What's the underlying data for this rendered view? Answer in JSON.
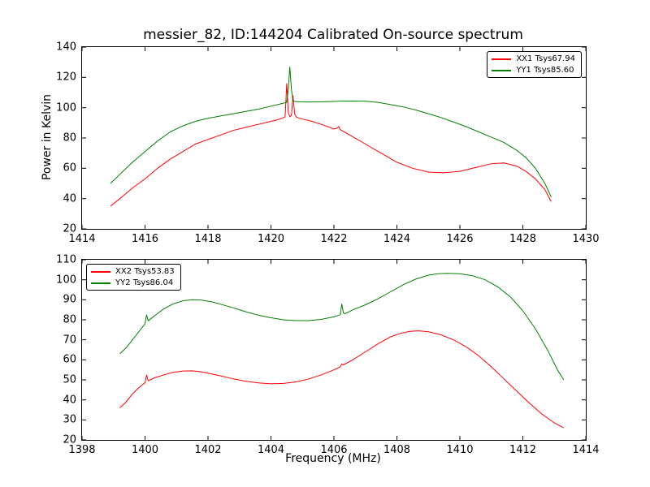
{
  "title": "messier_82, ID:144204 Calibrated On-source spectrum",
  "xlabel": "Frequency (MHz)",
  "ylabel": "Power in Kelvin",
  "colors": {
    "axis": "#000000",
    "background": "#ffffff"
  },
  "chart_data": [
    {
      "type": "line",
      "title": "Top subplot: calibrated on-source spectrum, polarizations XX1/YY1",
      "xlim": [
        1414,
        1430
      ],
      "ylim": [
        20,
        140
      ],
      "xticks": [
        1414,
        1416,
        1418,
        1420,
        1422,
        1424,
        1426,
        1428,
        1430
      ],
      "yticks": [
        20,
        40,
        60,
        80,
        100,
        120,
        140
      ],
      "grid": false,
      "legend_position": "top-right",
      "series": [
        {
          "name": "XX1 Tsys67.94",
          "color": "#ff0000",
          "x": [
            1414.9,
            1415.2,
            1415.6,
            1416.0,
            1416.4,
            1416.8,
            1417.2,
            1417.6,
            1418.0,
            1418.4,
            1418.8,
            1419.2,
            1419.6,
            1420.0,
            1420.2,
            1420.35,
            1420.45,
            1420.5,
            1420.55,
            1420.6,
            1420.65,
            1420.7,
            1420.75,
            1420.8,
            1420.9,
            1421.0,
            1421.3,
            1421.6,
            1422.0,
            1422.1,
            1422.15,
            1422.2,
            1422.5,
            1423.0,
            1423.5,
            1424.0,
            1424.5,
            1425.0,
            1425.5,
            1426.0,
            1426.5,
            1427.0,
            1427.4,
            1427.8,
            1428.1,
            1428.4,
            1428.7,
            1428.9
          ],
          "y": [
            35,
            40,
            47,
            53,
            60,
            66,
            71,
            76,
            79,
            82,
            85,
            87,
            89,
            91,
            92,
            93,
            94,
            116,
            97,
            94,
            95,
            108,
            96,
            94,
            93,
            92.5,
            91,
            89,
            86,
            86.5,
            87.5,
            85.5,
            82,
            76,
            70,
            64,
            60,
            57.5,
            57,
            58,
            60.5,
            63,
            63.5,
            61.5,
            58,
            53,
            46,
            38
          ]
        },
        {
          "name": "YY1 Tsys85.60",
          "color": "#008000",
          "x": [
            1414.9,
            1415.2,
            1415.6,
            1416.0,
            1416.4,
            1416.8,
            1417.2,
            1417.6,
            1418.0,
            1418.4,
            1418.8,
            1419.2,
            1419.6,
            1420.0,
            1420.3,
            1420.5,
            1420.55,
            1420.6,
            1420.65,
            1420.7,
            1420.8,
            1421.0,
            1421.4,
            1421.8,
            1422.2,
            1422.6,
            1423.0,
            1423.4,
            1423.8,
            1424.2,
            1424.6,
            1425.0,
            1425.4,
            1425.8,
            1426.2,
            1426.6,
            1427.0,
            1427.4,
            1427.8,
            1428.1,
            1428.4,
            1428.7,
            1428.9
          ],
          "y": [
            50,
            56,
            64,
            71,
            78,
            84,
            88,
            91,
            93,
            94.5,
            96,
            97.5,
            99,
            101,
            102.5,
            103.5,
            112,
            127,
            112,
            104.5,
            104,
            103.8,
            103.8,
            104,
            104.3,
            104.4,
            104.2,
            103.5,
            102,
            100.5,
            98.5,
            96,
            93.5,
            90.5,
            87.5,
            84,
            80.5,
            77,
            72,
            67,
            60,
            50,
            41
          ]
        }
      ]
    },
    {
      "type": "line",
      "title": "Bottom subplot: calibrated on-source spectrum, polarizations XX2/YY2",
      "xlim": [
        1398,
        1414
      ],
      "ylim": [
        20,
        110
      ],
      "xticks": [
        1398,
        1400,
        1402,
        1404,
        1406,
        1408,
        1410,
        1412,
        1414
      ],
      "yticks": [
        20,
        30,
        40,
        50,
        60,
        70,
        80,
        90,
        100,
        110
      ],
      "grid": false,
      "legend_position": "top-left",
      "series": [
        {
          "name": "XX2 Tsys53.83",
          "color": "#ff0000",
          "x": [
            1399.2,
            1399.4,
            1399.6,
            1399.8,
            1399.95,
            1400.0,
            1400.05,
            1400.1,
            1400.3,
            1400.6,
            1400.9,
            1401.2,
            1401.5,
            1401.8,
            1402.1,
            1402.4,
            1402.8,
            1403.2,
            1403.6,
            1404.0,
            1404.4,
            1404.8,
            1405.2,
            1405.6,
            1406.0,
            1406.2,
            1406.25,
            1406.3,
            1406.6,
            1407.0,
            1407.4,
            1407.8,
            1408.1,
            1408.4,
            1408.7,
            1409.0,
            1409.4,
            1409.8,
            1410.2,
            1410.6,
            1411.0,
            1411.4,
            1411.8,
            1412.2,
            1412.6,
            1413.0,
            1413.3
          ],
          "y": [
            36,
            39,
            43,
            46,
            48,
            48.5,
            52.5,
            49.5,
            51,
            52.5,
            53.8,
            54.4,
            54.5,
            54,
            53,
            52,
            50.5,
            49.3,
            48.5,
            48,
            48.2,
            49,
            50.5,
            52.5,
            55,
            56.5,
            58,
            57.5,
            60,
            64,
            68,
            71.5,
            73.2,
            74.2,
            74.5,
            74,
            72.5,
            70,
            66.5,
            62,
            56.5,
            50.5,
            44.5,
            38.5,
            33,
            28.5,
            26
          ]
        },
        {
          "name": "YY2 Tsys86.04",
          "color": "#008000",
          "x": [
            1399.2,
            1399.4,
            1399.6,
            1399.8,
            1399.95,
            1400.0,
            1400.05,
            1400.1,
            1400.3,
            1400.6,
            1400.9,
            1401.2,
            1401.5,
            1401.8,
            1402.1,
            1402.4,
            1402.8,
            1403.2,
            1403.6,
            1404.0,
            1404.4,
            1404.8,
            1405.2,
            1405.6,
            1406.0,
            1406.2,
            1406.25,
            1406.3,
            1406.35,
            1406.6,
            1407.0,
            1407.4,
            1407.8,
            1408.2,
            1408.6,
            1409.0,
            1409.3,
            1409.6,
            1410.0,
            1410.4,
            1410.8,
            1411.2,
            1411.6,
            1412.0,
            1412.4,
            1412.8,
            1413.1,
            1413.3
          ],
          "y": [
            63,
            66,
            70,
            74,
            77,
            78,
            82.5,
            79.5,
            82,
            85.5,
            88,
            89.5,
            90,
            89.8,
            89,
            87.8,
            86,
            84,
            82.3,
            81,
            80,
            79.6,
            79.6,
            80.2,
            81.5,
            82.5,
            88,
            83.5,
            83,
            85,
            87.5,
            90.5,
            94,
            97.5,
            100.3,
            102.3,
            103,
            103.2,
            103,
            102,
            100,
            96.5,
            91.5,
            84.5,
            75.5,
            64.5,
            55,
            50
          ]
        }
      ]
    }
  ]
}
